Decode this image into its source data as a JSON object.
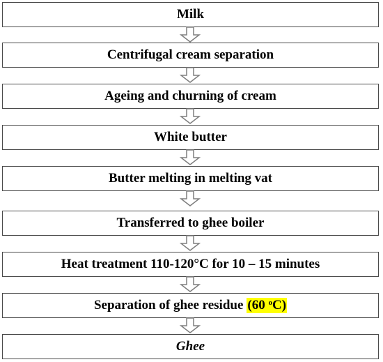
{
  "flowchart": {
    "steps": [
      {
        "label": "Milk"
      },
      {
        "label": "Centrifugal cream separation"
      },
      {
        "label": "Ageing and churning of cream"
      },
      {
        "label": "White butter"
      },
      {
        "label": "Butter melting in melting vat"
      },
      {
        "label": "Transferred to ghee boiler"
      },
      {
        "label": "Heat treatment 110-120°C for 10 – 15 minutes"
      },
      {
        "label": "Separation of ghee residue",
        "highlight": "(60",
        "highlight_sup": "o",
        "highlight_unit": "C)"
      },
      {
        "label": "Ghee"
      }
    ],
    "colors": {
      "border": "#4a4a4a",
      "arrow": "#7f7f7f",
      "highlight": "#ffff00"
    }
  }
}
